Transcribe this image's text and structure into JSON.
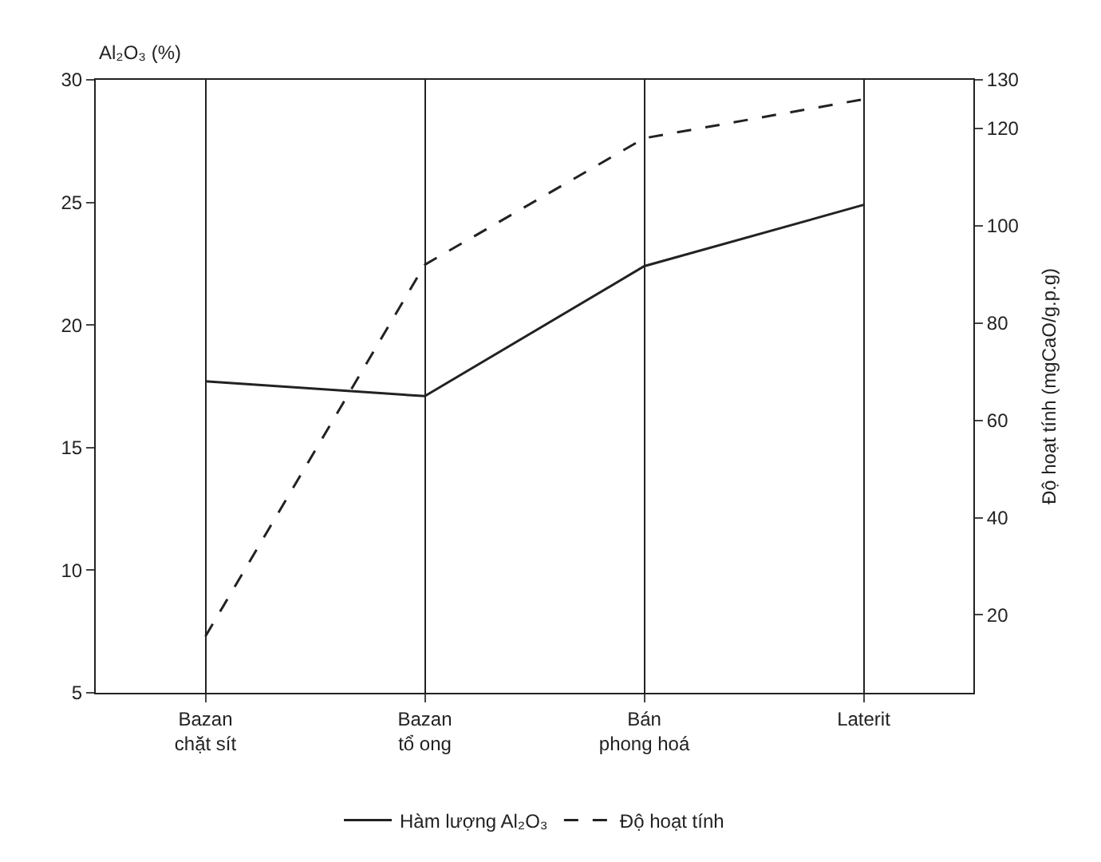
{
  "chart_data": {
    "type": "line",
    "ylabel": "Al₂O₃ (%)",
    "y2label": "Độ hoạt tính (mgCaO/g.p.g)",
    "categories": [
      "Bazan\nchặt sít",
      "Bazan\ntổ ong",
      "Bán\nphong hoá",
      "Laterit"
    ],
    "series": [
      {
        "name": "Hàm lượng Al₂O₃",
        "color": "#222222",
        "line_style": "solid",
        "values": [
          17.7,
          17.1,
          22.4,
          24.9
        ]
      },
      {
        "name": "Độ hoạt tính",
        "color": "#222222",
        "line_style": "dashed",
        "axis": "y2",
        "values": [
          15.6,
          92,
          118,
          126
        ]
      }
    ],
    "ylim": [
      5,
      30
    ],
    "yticks": [
      5,
      10,
      15,
      20,
      25,
      30
    ],
    "y2lim": [
      4,
      130
    ],
    "y2ticks": [
      20,
      40,
      60,
      80,
      100,
      120,
      130
    ],
    "grid": "x",
    "legend": "bottom",
    "marker": "none"
  }
}
